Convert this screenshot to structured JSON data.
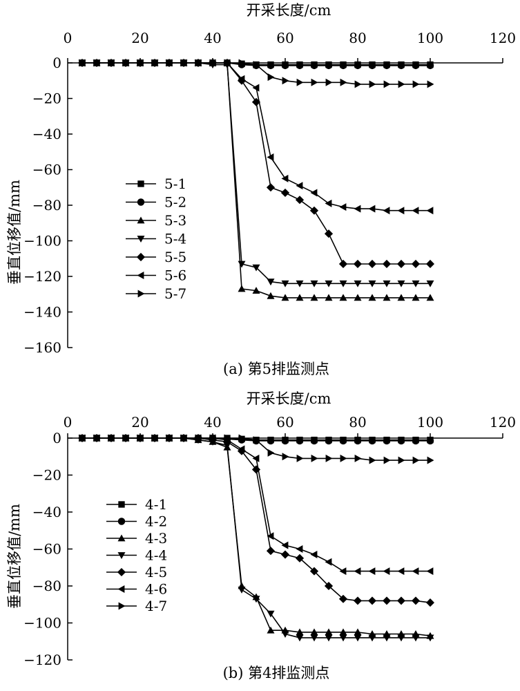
{
  "chart_data": [
    {
      "type": "line",
      "title": "",
      "caption": "(a) 第5排监测点",
      "xlabel": "开采长度/cm",
      "ylabel": "垂直位移值/mm",
      "xlim": [
        0,
        120
      ],
      "ylim": [
        -160,
        0
      ],
      "x_ticks": [
        "0",
        "20",
        "40",
        "60",
        "80",
        "100",
        "120"
      ],
      "y_ticks": [
        "0",
        "−20",
        "−40",
        "−60",
        "−80",
        "−100",
        "−120",
        "−140",
        "−160"
      ],
      "legend_position": "center-left",
      "x": [
        4,
        8,
        12,
        16,
        20,
        24,
        28,
        32,
        36,
        40,
        44,
        48,
        52,
        56,
        60,
        64,
        68,
        72,
        76,
        80,
        84,
        88,
        92,
        96,
        100
      ],
      "series": [
        {
          "name": "5-1",
          "marker": "square",
          "values": [
            0,
            0,
            0,
            0,
            0,
            0,
            0,
            0,
            0,
            0,
            0,
            -0.5,
            -1,
            -1,
            -1,
            -1,
            -1,
            -1,
            -1,
            -1,
            -1,
            -1,
            -1,
            -1,
            -1
          ]
        },
        {
          "name": "5-2",
          "marker": "circle",
          "values": [
            0,
            0,
            0,
            0,
            0,
            0,
            0,
            0,
            0,
            0,
            0,
            -1,
            -1.5,
            -1.5,
            -1.5,
            -1.5,
            -1.5,
            -1.5,
            -1.5,
            -1.5,
            -1.5,
            -1.5,
            -1.5,
            -1.5,
            -1.5
          ]
        },
        {
          "name": "5-3",
          "marker": "triangle-up",
          "values": [
            0,
            0,
            0,
            0,
            0,
            0,
            0,
            0,
            0,
            0,
            0,
            -127,
            -128,
            -131,
            -132,
            -132,
            -132,
            -132,
            -132,
            -132,
            -132,
            -132,
            -132,
            -132,
            -132
          ]
        },
        {
          "name": "5-4",
          "marker": "triangle-down",
          "values": [
            0,
            0,
            0,
            0,
            0,
            0,
            0,
            0,
            0,
            -1,
            -1,
            -113,
            -115,
            -123,
            -124,
            -124,
            -124,
            -124,
            -124,
            -124,
            -124,
            -124,
            -124,
            -124,
            -124
          ]
        },
        {
          "name": "5-5",
          "marker": "diamond",
          "values": [
            0,
            0,
            0,
            0,
            0,
            0,
            0,
            0,
            0,
            0,
            0,
            -10,
            -22,
            -70,
            -73,
            -77,
            -83,
            -96,
            -113,
            -113,
            -113,
            -113,
            -113,
            -113,
            -113
          ]
        },
        {
          "name": "5-6",
          "marker": "triangle-left",
          "values": [
            0,
            0,
            0,
            0,
            0,
            0,
            0,
            0,
            0,
            0,
            0,
            -9,
            -14,
            -53,
            -65,
            -69,
            -73,
            -79,
            -81,
            -82,
            -82,
            -83,
            -83,
            -83,
            -83
          ]
        },
        {
          "name": "5-7",
          "marker": "triangle-right",
          "values": [
            0,
            0,
            0,
            0,
            0,
            0,
            0,
            0,
            0,
            0,
            0,
            0,
            -1,
            -8,
            -10,
            -11,
            -11,
            -11,
            -11,
            -12,
            -12,
            -12,
            -12,
            -12,
            -12
          ]
        }
      ]
    },
    {
      "type": "line",
      "title": "",
      "caption": "(b) 第4排监测点",
      "xlabel": "开采长度/cm",
      "ylabel": "垂直位移值/mm",
      "xlim": [
        0,
        120
      ],
      "ylim": [
        -120,
        0
      ],
      "x_ticks": [
        "0",
        "20",
        "40",
        "60",
        "80",
        "100",
        "120"
      ],
      "y_ticks": [
        "0",
        "−20",
        "−40",
        "−60",
        "−80",
        "−100",
        "−120"
      ],
      "legend_position": "center-left",
      "x": [
        4,
        8,
        12,
        16,
        20,
        24,
        28,
        32,
        36,
        40,
        44,
        48,
        52,
        56,
        60,
        64,
        68,
        72,
        76,
        80,
        84,
        88,
        92,
        96,
        100
      ],
      "series": [
        {
          "name": "4-1",
          "marker": "square",
          "values": [
            0,
            0,
            0,
            0,
            0,
            0,
            0,
            0,
            0,
            0,
            0,
            -0.5,
            -1,
            -1,
            -1,
            -1,
            -1,
            -1,
            -1,
            -1,
            -1,
            -1,
            -1,
            -1,
            -1
          ]
        },
        {
          "name": "4-2",
          "marker": "circle",
          "values": [
            0,
            0,
            0,
            0,
            0,
            0,
            0,
            0,
            0,
            0,
            -0.5,
            -1,
            -1.5,
            -1.5,
            -1.5,
            -1.5,
            -1.5,
            -1.5,
            -1.5,
            -1.5,
            -1.5,
            -1.5,
            -1.5,
            -1.5,
            -1.5
          ]
        },
        {
          "name": "4-3",
          "marker": "triangle-up",
          "values": [
            0,
            0,
            0,
            0,
            0,
            0,
            0,
            0,
            -1,
            -2,
            -5,
            -80,
            -86,
            -104,
            -104,
            -105,
            -105,
            -105,
            -105,
            -105,
            -106,
            -106,
            -106,
            -106,
            -107
          ]
        },
        {
          "name": "4-4",
          "marker": "triangle-down",
          "values": [
            0,
            0,
            0,
            0,
            0,
            0,
            0,
            0,
            -1,
            -2,
            -4,
            -82,
            -87,
            -95,
            -106,
            -108,
            -108,
            -108,
            -108,
            -108,
            -108,
            -108,
            -108,
            -108,
            -108
          ]
        },
        {
          "name": "4-5",
          "marker": "diamond",
          "values": [
            0,
            0,
            0,
            0,
            0,
            0,
            0,
            0,
            0,
            -1,
            -2,
            -7,
            -17,
            -61,
            -63,
            -65,
            -72,
            -80,
            -87,
            -88,
            -88,
            -88,
            -88,
            -88,
            -89
          ]
        },
        {
          "name": "4-6",
          "marker": "triangle-left",
          "values": [
            0,
            0,
            0,
            0,
            0,
            0,
            0,
            0,
            0,
            0,
            -1,
            -6,
            -11,
            -53,
            -58,
            -60,
            -63,
            -67,
            -72,
            -72,
            -72,
            -72,
            -72,
            -72,
            -72
          ]
        },
        {
          "name": "4-7",
          "marker": "triangle-right",
          "values": [
            0,
            0,
            0,
            0,
            0,
            0,
            0,
            0,
            0,
            0,
            0,
            0,
            -1,
            -8,
            -10,
            -11,
            -11,
            -11,
            -11,
            -11,
            -12,
            -12,
            -12,
            -12,
            -12
          ]
        }
      ]
    }
  ]
}
